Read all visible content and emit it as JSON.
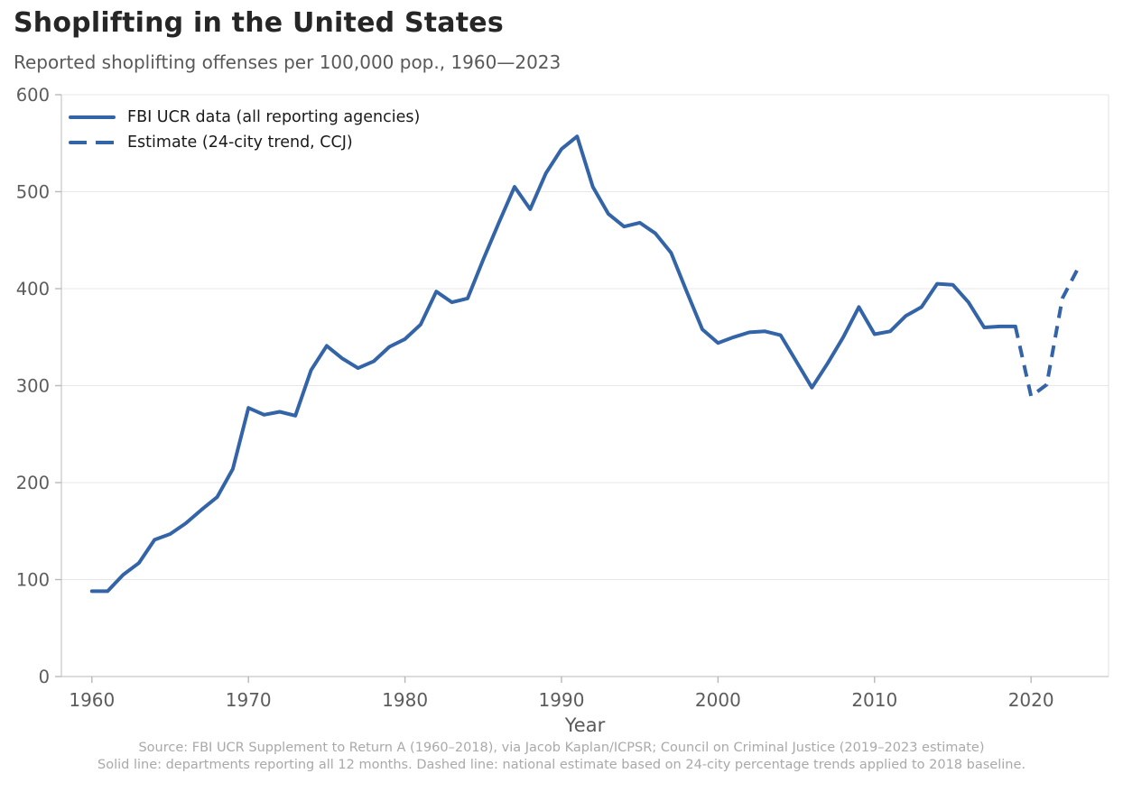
{
  "header": {
    "title": "Shoplifting in the United States",
    "subtitle": "Reported shoplifting offenses per 100,000 pop., 1960—2023"
  },
  "legend": [
    {
      "label": "FBI UCR data (all reporting agencies)",
      "style": "solid"
    },
    {
      "label": "Estimate (24-city trend, CCJ)",
      "style": "dashed"
    }
  ],
  "axes": {
    "xlabel": "Year",
    "x_ticks": [
      1960,
      1970,
      1980,
      1990,
      2000,
      2010,
      2020
    ],
    "y_ticks": [
      0,
      100,
      200,
      300,
      400,
      500,
      600
    ]
  },
  "footnotes": [
    "Source: FBI UCR Supplement to Return A (1960–2018), via Jacob Kaplan/ICPSR; Council on Criminal Justice (2019–2023 estimate)",
    "Solid line: departments reporting all 12 months. Dashed line: national estimate based on 24-city percentage trends applied to 2018 baseline."
  ],
  "colors": {
    "line": "#3464a8",
    "grid": "#e7e7e7",
    "spine": "#c6c6c6",
    "right_spine": "#e2e2e2",
    "tick": "#b8b8b8",
    "tick_label": "#5c5c5c"
  },
  "chart_data": {
    "type": "line",
    "title": "Shoplifting in the United States",
    "subtitle": "Reported shoplifting offenses per 100,000 pop., 1960—2023",
    "xlabel": "Year",
    "ylabel": "",
    "xlim": [
      1958.05,
      2024.95
    ],
    "ylim": [
      0,
      600
    ],
    "grid": "horizontal-only",
    "legend_position": "upper-left-inside",
    "series": [
      {
        "name": "FBI UCR data (all reporting agencies)",
        "style": "solid",
        "x": [
          1960,
          1961,
          1962,
          1963,
          1964,
          1965,
          1966,
          1967,
          1968,
          1969,
          1970,
          1971,
          1972,
          1973,
          1974,
          1975,
          1976,
          1977,
          1978,
          1979,
          1980,
          1981,
          1982,
          1983,
          1984,
          1985,
          1986,
          1987,
          1988,
          1989,
          1990,
          1991,
          1992,
          1993,
          1994,
          1995,
          1996,
          1997,
          1998,
          1999,
          2000,
          2001,
          2002,
          2003,
          2004,
          2005,
          2006,
          2007,
          2008,
          2009,
          2010,
          2011,
          2012,
          2013,
          2014,
          2015,
          2016,
          2017,
          2018,
          2019
        ],
        "values": [
          88,
          88,
          105,
          117,
          141,
          147,
          158,
          172,
          185,
          214,
          277,
          270,
          273,
          269,
          316,
          341,
          328,
          318,
          325,
          340,
          348,
          363,
          397,
          386,
          390,
          430,
          468,
          505,
          482,
          519,
          544,
          557,
          505,
          477,
          464,
          468,
          457,
          437,
          397,
          358,
          344,
          350,
          355,
          356,
          352,
          325,
          298,
          323,
          350,
          381,
          353,
          356,
          372,
          381,
          405,
          404,
          386,
          360,
          361,
          361
        ]
      },
      {
        "name": "Estimate (24-city trend, CCJ)",
        "style": "dashed",
        "x": [
          2019,
          2020,
          2021,
          2022,
          2023
        ],
        "values": [
          361,
          289,
          301,
          390,
          421
        ]
      }
    ]
  }
}
